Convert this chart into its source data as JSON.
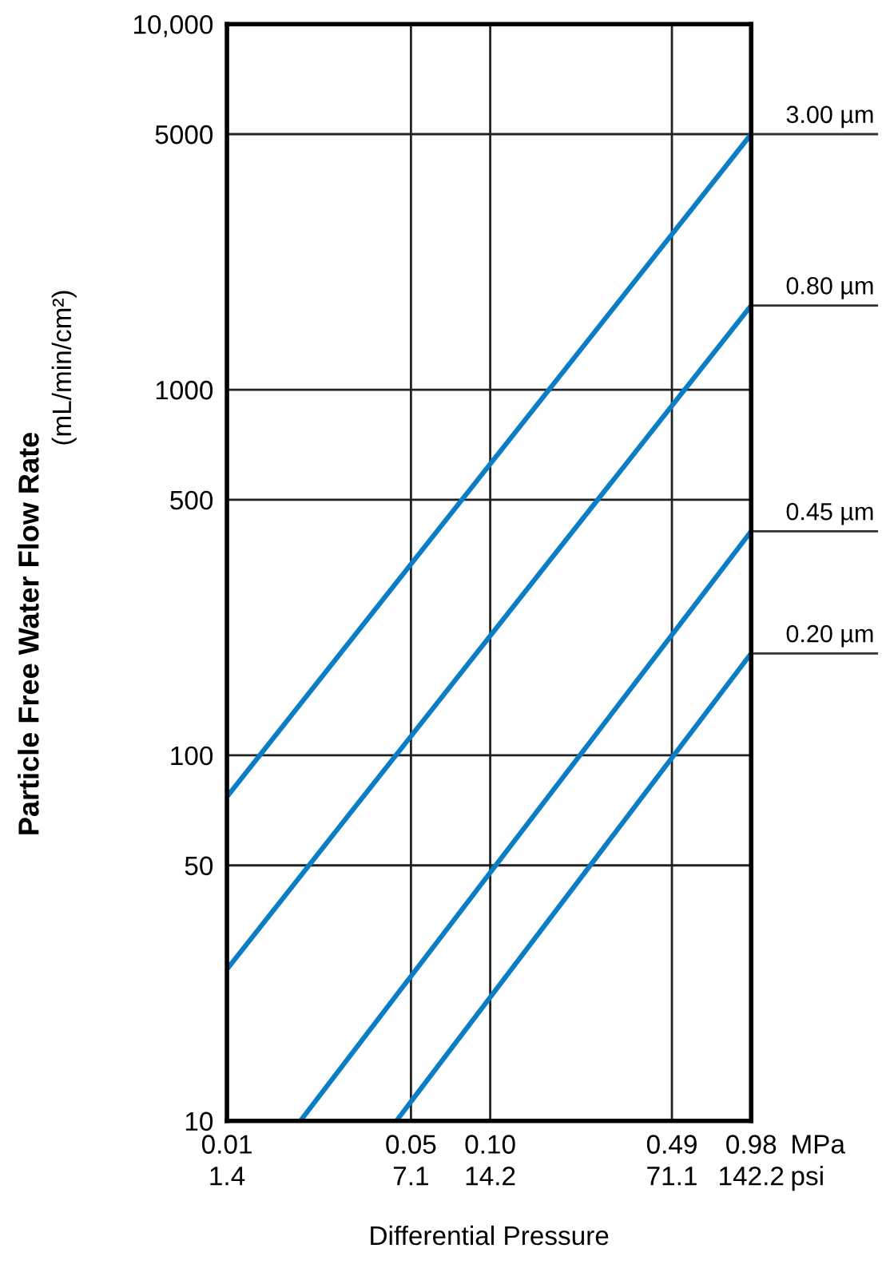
{
  "chart_data": {
    "type": "line",
    "xlabel": "Differential Pressure",
    "ylabel": "Particle Free Water Flow Rate\n(mL/min/cm²)",
    "log": "xy",
    "xlim": [
      0.01,
      0.98
    ],
    "ylim": [
      10,
      10000
    ],
    "xticks": [
      0.01,
      0.05,
      {
        "value": 0.1,
        "label": "0.10"
      },
      0.49,
      0.98
    ],
    "annotations": [
      "1.4",
      "7.1",
      "14.2",
      "71.1",
      "142.2",
      "MPa",
      "psi"
    ],
    "yticks": [
      10,
      50,
      100,
      500,
      1000,
      5000,
      {
        "value": 10000,
        "label": "10,000"
      }
    ],
    "grid": true,
    "legend": false,
    "marker": "none",
    "line_style": "solid",
    "series": [
      {
        "name": "3.00 µm",
        "color": "#0b7dc4",
        "x": [
          0.01,
          0.98
        ],
        "values": [
          77,
          5000
        ]
      },
      {
        "name": "0.80 µm",
        "color": "#0b7dc4",
        "x": [
          0.01,
          0.98
        ],
        "values": [
          26,
          1700
        ]
      },
      {
        "name": "0.45 µm",
        "color": "#0b7dc4",
        "x": [
          0.019,
          0.98
        ],
        "values": [
          10,
          410
        ]
      },
      {
        "name": "0.20 µm",
        "color": "#0b7dc4",
        "x": [
          0.044,
          0.98
        ],
        "values": [
          10,
          190
        ]
      }
    ]
  }
}
